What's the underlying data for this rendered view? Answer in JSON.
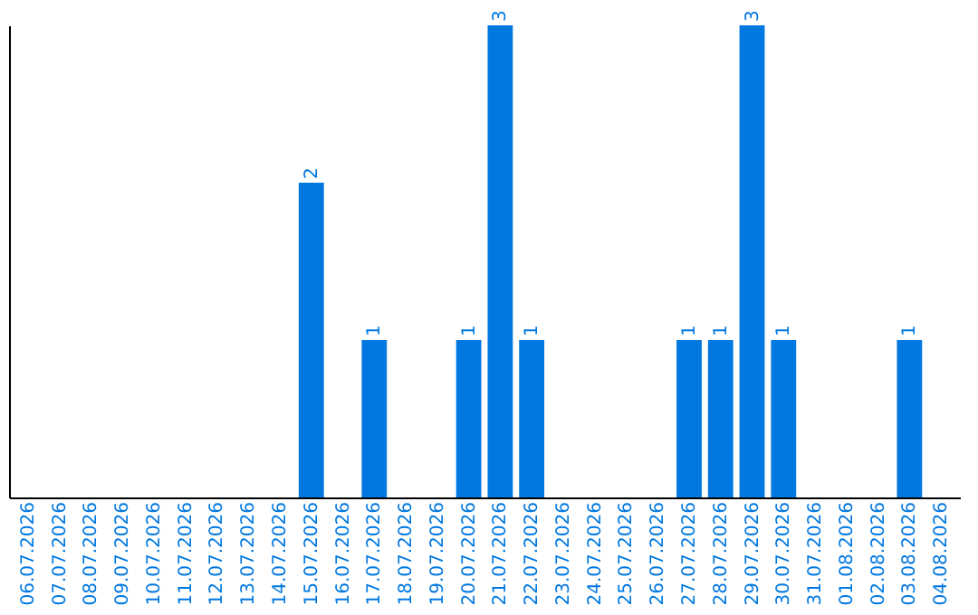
{
  "chart_data": {
    "type": "bar",
    "categories": [
      "06.07.2026",
      "07.07.2026",
      "08.07.2026",
      "09.07.2026",
      "10.07.2026",
      "11.07.2026",
      "12.07.2026",
      "13.07.2026",
      "14.07.2026",
      "15.07.2026",
      "16.07.2026",
      "17.07.2026",
      "18.07.2026",
      "19.07.2026",
      "20.07.2026",
      "21.07.2026",
      "22.07.2026",
      "23.07.2026",
      "24.07.2026",
      "25.07.2026",
      "26.07.2026",
      "27.07.2026",
      "28.07.2026",
      "29.07.2026",
      "30.07.2026",
      "31.07.2026",
      "01.08.2026",
      "02.08.2026",
      "03.08.2026",
      "04.08.2026"
    ],
    "values": [
      0,
      0,
      0,
      0,
      0,
      0,
      0,
      0,
      0,
      2,
      0,
      1,
      0,
      0,
      1,
      3,
      1,
      0,
      0,
      0,
      0,
      1,
      1,
      3,
      1,
      0,
      0,
      0,
      1,
      0
    ],
    "value_labels": [
      null,
      null,
      null,
      null,
      null,
      null,
      null,
      null,
      null,
      "2",
      null,
      "1",
      null,
      null,
      "1",
      "3",
      "1",
      null,
      null,
      null,
      null,
      "1",
      "1",
      "3",
      "1",
      null,
      null,
      null,
      "1",
      null
    ],
    "color": "#0078e0",
    "tick_labels": "x",
    "grid": false
  }
}
